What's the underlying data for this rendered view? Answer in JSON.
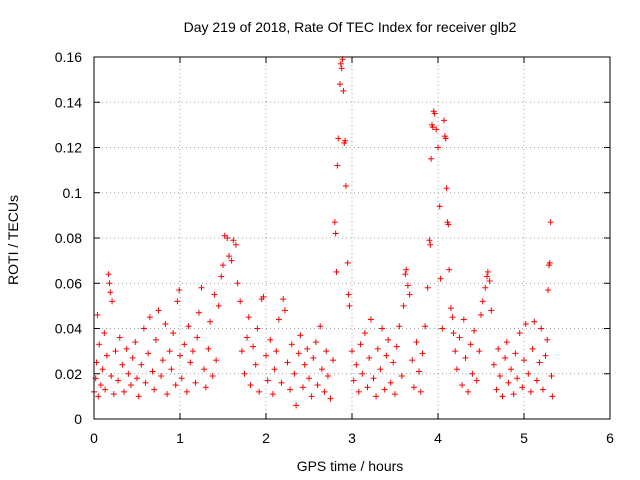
{
  "chart_data": {
    "type": "scatter",
    "title": "Day 219 of 2018, Rate Of TEC Index for receiver glb2",
    "xlabel": "GPS time / hours",
    "ylabel": "ROTI / TECUs",
    "xlim": [
      0,
      6
    ],
    "ylim": [
      0,
      0.16
    ],
    "xticks": [
      0,
      1,
      2,
      3,
      4,
      5,
      6
    ],
    "xtick_labels": [
      "0",
      "1",
      "2",
      "3",
      "4",
      "5",
      "6"
    ],
    "yticks": [
      0,
      0.02,
      0.04,
      0.06,
      0.08,
      0.1,
      0.12,
      0.14,
      0.16
    ],
    "ytick_labels": [
      "0",
      "0.02",
      "0.04",
      "0.06",
      "0.08",
      "0.1",
      "0.12",
      "0.14",
      "0.16"
    ],
    "grid": true,
    "marker": "+",
    "color": "#ff0000",
    "series": [
      {
        "name": "ROTI",
        "note": "dense band of values roughly 0.005-0.035 TECU/min from 0 to 5.3 h; representative sample points below",
        "points": [
          [
            0.0,
            0.012
          ],
          [
            0.02,
            0.018
          ],
          [
            0.03,
            0.025
          ],
          [
            0.04,
            0.046
          ],
          [
            0.05,
            0.01
          ],
          [
            0.06,
            0.033
          ],
          [
            0.08,
            0.015
          ],
          [
            0.1,
            0.022
          ],
          [
            0.12,
            0.038
          ],
          [
            0.13,
            0.013
          ],
          [
            0.15,
            0.028
          ],
          [
            0.17,
            0.064
          ],
          [
            0.18,
            0.06
          ],
          [
            0.19,
            0.056
          ],
          [
            0.2,
            0.019
          ],
          [
            0.21,
            0.052
          ],
          [
            0.23,
            0.011
          ],
          [
            0.25,
            0.03
          ],
          [
            0.28,
            0.017
          ],
          [
            0.3,
            0.036
          ],
          [
            0.33,
            0.024
          ],
          [
            0.35,
            0.012
          ],
          [
            0.38,
            0.031
          ],
          [
            0.4,
            0.02
          ],
          [
            0.43,
            0.015
          ],
          [
            0.45,
            0.027
          ],
          [
            0.48,
            0.034
          ],
          [
            0.5,
            0.018
          ],
          [
            0.52,
            0.01
          ],
          [
            0.55,
            0.024
          ],
          [
            0.58,
            0.04
          ],
          [
            0.6,
            0.016
          ],
          [
            0.63,
            0.029
          ],
          [
            0.65,
            0.045
          ],
          [
            0.68,
            0.021
          ],
          [
            0.7,
            0.013
          ],
          [
            0.72,
            0.035
          ],
          [
            0.75,
            0.048
          ],
          [
            0.78,
            0.019
          ],
          [
            0.8,
            0.026
          ],
          [
            0.83,
            0.042
          ],
          [
            0.85,
            0.011
          ],
          [
            0.88,
            0.03
          ],
          [
            0.9,
            0.022
          ],
          [
            0.92,
            0.038
          ],
          [
            0.95,
            0.015
          ],
          [
            0.97,
            0.052
          ],
          [
            0.99,
            0.057
          ],
          [
            1.0,
            0.028
          ],
          [
            1.02,
            0.018
          ],
          [
            1.05,
            0.033
          ],
          [
            1.08,
            0.012
          ],
          [
            1.1,
            0.041
          ],
          [
            1.12,
            0.025
          ],
          [
            1.15,
            0.03
          ],
          [
            1.18,
            0.016
          ],
          [
            1.2,
            0.036
          ],
          [
            1.22,
            0.047
          ],
          [
            1.25,
            0.058
          ],
          [
            1.28,
            0.022
          ],
          [
            1.3,
            0.014
          ],
          [
            1.33,
            0.031
          ],
          [
            1.35,
            0.043
          ],
          [
            1.38,
            0.019
          ],
          [
            1.4,
            0.055
          ],
          [
            1.42,
            0.026
          ],
          [
            1.45,
            0.05
          ],
          [
            1.48,
            0.063
          ],
          [
            1.5,
            0.068
          ],
          [
            1.52,
            0.081
          ],
          [
            1.55,
            0.08
          ],
          [
            1.57,
            0.072
          ],
          [
            1.6,
            0.07
          ],
          [
            1.62,
            0.079
          ],
          [
            1.65,
            0.077
          ],
          [
            1.67,
            0.06
          ],
          [
            1.7,
            0.052
          ],
          [
            1.72,
            0.03
          ],
          [
            1.75,
            0.02
          ],
          [
            1.78,
            0.036
          ],
          [
            1.8,
            0.045
          ],
          [
            1.82,
            0.015
          ],
          [
            1.85,
            0.032
          ],
          [
            1.88,
            0.024
          ],
          [
            1.9,
            0.04
          ],
          [
            1.92,
            0.012
          ],
          [
            1.95,
            0.053
          ],
          [
            1.97,
            0.054
          ],
          [
            2.0,
            0.028
          ],
          [
            2.02,
            0.017
          ],
          [
            2.05,
            0.035
          ],
          [
            2.08,
            0.011
          ],
          [
            2.1,
            0.022
          ],
          [
            2.12,
            0.03
          ],
          [
            2.15,
            0.044
          ],
          [
            2.18,
            0.016
          ],
          [
            2.2,
            0.053
          ],
          [
            2.22,
            0.048
          ],
          [
            2.25,
            0.025
          ],
          [
            2.28,
            0.013
          ],
          [
            2.3,
            0.033
          ],
          [
            2.33,
            0.02
          ],
          [
            2.35,
            0.006
          ],
          [
            2.38,
            0.029
          ],
          [
            2.4,
            0.037
          ],
          [
            2.43,
            0.014
          ],
          [
            2.45,
            0.024
          ],
          [
            2.48,
            0.031
          ],
          [
            2.5,
            0.018
          ],
          [
            2.53,
            0.01
          ],
          [
            2.55,
            0.027
          ],
          [
            2.58,
            0.034
          ],
          [
            2.6,
            0.015
          ],
          [
            2.63,
            0.041
          ],
          [
            2.65,
            0.022
          ],
          [
            2.68,
            0.012
          ],
          [
            2.7,
            0.03
          ],
          [
            2.72,
            0.019
          ],
          [
            2.75,
            0.009
          ],
          [
            2.78,
            0.026
          ],
          [
            2.8,
            0.087
          ],
          [
            2.81,
            0.082
          ],
          [
            2.82,
            0.065
          ],
          [
            2.83,
            0.112
          ],
          [
            2.84,
            0.124
          ],
          [
            2.86,
            0.148
          ],
          [
            2.87,
            0.157
          ],
          [
            2.88,
            0.155
          ],
          [
            2.89,
            0.159
          ],
          [
            2.9,
            0.145
          ],
          [
            2.91,
            0.122
          ],
          [
            2.92,
            0.123
          ],
          [
            2.93,
            0.103
          ],
          [
            2.95,
            0.069
          ],
          [
            2.96,
            0.055
          ],
          [
            2.97,
            0.05
          ],
          [
            3.0,
            0.03
          ],
          [
            3.02,
            0.017
          ],
          [
            3.05,
            0.024
          ],
          [
            3.08,
            0.012
          ],
          [
            3.1,
            0.033
          ],
          [
            3.12,
            0.02
          ],
          [
            3.15,
            0.038
          ],
          [
            3.18,
            0.014
          ],
          [
            3.2,
            0.027
          ],
          [
            3.22,
            0.044
          ],
          [
            3.25,
            0.018
          ],
          [
            3.28,
            0.01
          ],
          [
            3.3,
            0.031
          ],
          [
            3.33,
            0.022
          ],
          [
            3.35,
            0.04
          ],
          [
            3.38,
            0.013
          ],
          [
            3.4,
            0.028
          ],
          [
            3.42,
            0.035
          ],
          [
            3.45,
            0.016
          ],
          [
            3.48,
            0.025
          ],
          [
            3.5,
            0.011
          ],
          [
            3.52,
            0.032
          ],
          [
            3.55,
            0.041
          ],
          [
            3.58,
            0.019
          ],
          [
            3.6,
            0.05
          ],
          [
            3.62,
            0.064
          ],
          [
            3.63,
            0.066
          ],
          [
            3.65,
            0.059
          ],
          [
            3.67,
            0.055
          ],
          [
            3.7,
            0.026
          ],
          [
            3.72,
            0.014
          ],
          [
            3.75,
            0.034
          ],
          [
            3.78,
            0.021
          ],
          [
            3.8,
            0.012
          ],
          [
            3.82,
            0.029
          ],
          [
            3.85,
            0.041
          ],
          [
            3.88,
            0.058
          ],
          [
            3.9,
            0.079
          ],
          [
            3.91,
            0.077
          ],
          [
            3.92,
            0.115
          ],
          [
            3.93,
            0.13
          ],
          [
            3.94,
            0.129
          ],
          [
            3.95,
            0.136
          ],
          [
            3.96,
            0.135
          ],
          [
            3.98,
            0.128
          ],
          [
            4.0,
            0.12
          ],
          [
            4.02,
            0.094
          ],
          [
            4.03,
            0.062
          ],
          [
            4.05,
            0.04
          ],
          [
            4.07,
            0.132
          ],
          [
            4.08,
            0.125
          ],
          [
            4.09,
            0.124
          ],
          [
            4.1,
            0.102
          ],
          [
            4.11,
            0.087
          ],
          [
            4.12,
            0.086
          ],
          [
            4.13,
            0.066
          ],
          [
            4.15,
            0.049
          ],
          [
            4.17,
            0.045
          ],
          [
            4.18,
            0.038
          ],
          [
            4.2,
            0.03
          ],
          [
            4.22,
            0.022
          ],
          [
            4.25,
            0.036
          ],
          [
            4.28,
            0.015
          ],
          [
            4.3,
            0.044
          ],
          [
            4.32,
            0.027
          ],
          [
            4.35,
            0.012
          ],
          [
            4.38,
            0.033
          ],
          [
            4.4,
            0.02
          ],
          [
            4.42,
            0.039
          ],
          [
            4.45,
            0.017
          ],
          [
            4.48,
            0.03
          ],
          [
            4.5,
            0.046
          ],
          [
            4.52,
            0.052
          ],
          [
            4.55,
            0.058
          ],
          [
            4.57,
            0.063
          ],
          [
            4.58,
            0.065
          ],
          [
            4.6,
            0.061
          ],
          [
            4.62,
            0.048
          ],
          [
            4.65,
            0.024
          ],
          [
            4.68,
            0.013
          ],
          [
            4.7,
            0.031
          ],
          [
            4.72,
            0.019
          ],
          [
            4.75,
            0.01
          ],
          [
            4.78,
            0.027
          ],
          [
            4.8,
            0.034
          ],
          [
            4.82,
            0.016
          ],
          [
            4.85,
            0.022
          ],
          [
            4.88,
            0.011
          ],
          [
            4.9,
            0.029
          ],
          [
            4.92,
            0.018
          ],
          [
            4.95,
            0.038
          ],
          [
            4.98,
            0.014
          ],
          [
            5.0,
            0.026
          ],
          [
            5.02,
            0.042
          ],
          [
            5.05,
            0.02
          ],
          [
            5.08,
            0.012
          ],
          [
            5.1,
            0.031
          ],
          [
            5.12,
            0.043
          ],
          [
            5.15,
            0.017
          ],
          [
            5.18,
            0.025
          ],
          [
            5.2,
            0.04
          ],
          [
            5.22,
            0.013
          ],
          [
            5.25,
            0.028
          ],
          [
            5.27,
            0.035
          ],
          [
            5.28,
            0.057
          ],
          [
            5.29,
            0.068
          ],
          [
            5.3,
            0.069
          ],
          [
            5.31,
            0.087
          ],
          [
            5.32,
            0.019
          ],
          [
            5.33,
            0.01
          ]
        ]
      }
    ]
  }
}
